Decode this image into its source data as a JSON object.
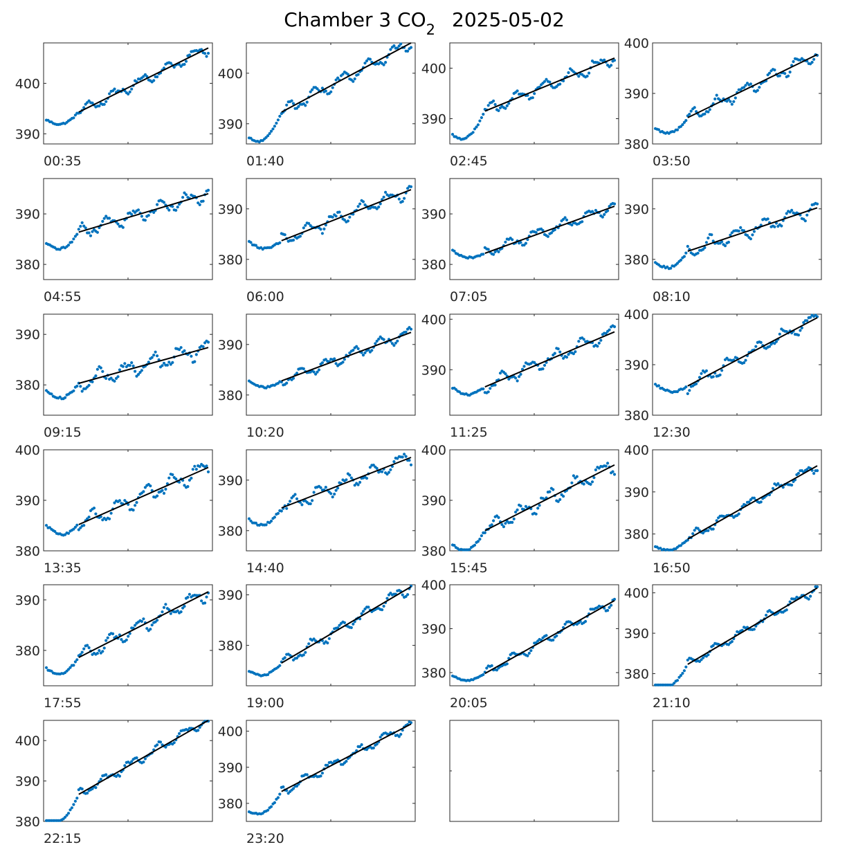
{
  "title": {
    "main": "Chamber 3 CO",
    "sub": "2",
    "date": "2025-05-02"
  },
  "colors": {
    "points": "#0072BD",
    "fit": "#000000",
    "axes": "#262626"
  },
  "chart_data": {
    "type": "scatter",
    "layout": "grid of 4 columns x 6 rows",
    "description_series": [
      "measured",
      "linear fit"
    ],
    "panels": [
      {
        "label": "00:35",
        "ylim": [
          388,
          408
        ],
        "yticks": [
          390,
          400
        ],
        "start": 392.8,
        "fit": [
          394.3,
          407.0
        ],
        "sawtooth": 1.0
      },
      {
        "label": "01:40",
        "ylim": [
          386,
          406
        ],
        "yticks": [
          390,
          400
        ],
        "start": 387.2,
        "fit": [
          392.3,
          406.0
        ],
        "sawtooth": 1.2
      },
      {
        "label": "02:45",
        "ylim": [
          385,
          405
        ],
        "yticks": [
          390,
          400
        ],
        "start": 386.8,
        "fit": [
          391.5,
          402.0
        ],
        "sawtooth": 1.2
      },
      {
        "label": "03:50",
        "ylim": [
          380,
          400
        ],
        "yticks": [
          380,
          390,
          400
        ],
        "start": 383.2,
        "fit": [
          385.2,
          397.7
        ],
        "sawtooth": 1.2
      },
      {
        "label": "04:55",
        "ylim": [
          377,
          397
        ],
        "yticks": [
          380,
          390
        ],
        "start": 384.2,
        "fit": [
          386.4,
          394.0
        ],
        "sawtooth": 1.3
      },
      {
        "label": "06:00",
        "ylim": [
          376,
          396
        ],
        "yticks": [
          380,
          390
        ],
        "start": 383.5,
        "fit": [
          383.7,
          393.8
        ],
        "sawtooth": 1.2
      },
      {
        "label": "07:05",
        "ylim": [
          377,
          397
        ],
        "yticks": [
          380,
          390
        ],
        "start": 382.7,
        "fit": [
          382.2,
          391.5
        ],
        "sawtooth": 1.0
      },
      {
        "label": "08:10",
        "ylim": [
          376,
          396
        ],
        "yticks": [
          380,
          390
        ],
        "start": 379.5,
        "fit": [
          381.6,
          390.2
        ],
        "sawtooth": 1.3
      },
      {
        "label": "09:15",
        "ylim": [
          374,
          394
        ],
        "yticks": [
          380,
          390
        ],
        "start": 378.9,
        "fit": [
          380.3,
          387.4
        ],
        "sawtooth": 1.5
      },
      {
        "label": "10:20",
        "ylim": [
          376,
          396
        ],
        "yticks": [
          380,
          390
        ],
        "start": 382.7,
        "fit": [
          382.8,
          392.4
        ],
        "sawtooth": 1.0
      },
      {
        "label": "11:25",
        "ylim": [
          381,
          401
        ],
        "yticks": [
          390,
          400
        ],
        "start": 386.5,
        "fit": [
          386.6,
          397.5
        ],
        "sawtooth": 1.2
      },
      {
        "label": "12:30",
        "ylim": [
          380,
          400
        ],
        "yticks": [
          380,
          390,
          400
        ],
        "start": 386.2,
        "fit": [
          385.8,
          399.3
        ],
        "sawtooth": 1.2
      },
      {
        "label": "13:35",
        "ylim": [
          380,
          400
        ],
        "yticks": [
          380,
          390,
          400
        ],
        "start": 385.0,
        "fit": [
          385.2,
          396.5
        ],
        "sawtooth": 1.5
      },
      {
        "label": "14:40",
        "ylim": [
          376,
          396
        ],
        "yticks": [
          380,
          390
        ],
        "start": 382.2,
        "fit": [
          384.5,
          394.5
        ],
        "sawtooth": 1.3
      },
      {
        "label": "15:45",
        "ylim": [
          380,
          400
        ],
        "yticks": [
          380,
          390,
          400
        ],
        "start": 381.3,
        "fit": [
          384.0,
          397.0
        ],
        "sawtooth": 1.4
      },
      {
        "label": "16:50",
        "ylim": [
          376,
          400
        ],
        "yticks": [
          380,
          390,
          400
        ],
        "start": 377.0,
        "fit": [
          378.8,
          396.2
        ],
        "sawtooth": 1.0
      },
      {
        "label": "17:55",
        "ylim": [
          373,
          393
        ],
        "yticks": [
          380,
          390
        ],
        "start": 376.5,
        "fit": [
          378.6,
          391.6
        ],
        "sawtooth": 1.3
      },
      {
        "label": "19:00",
        "ylim": [
          372,
          392
        ],
        "yticks": [
          380,
          390
        ],
        "start": 375.0,
        "fit": [
          376.5,
          391.6
        ],
        "sawtooth": 1.0
      },
      {
        "label": "20:05",
        "ylim": [
          377,
          400
        ],
        "yticks": [
          380,
          390,
          400
        ],
        "start": 379.3,
        "fit": [
          379.8,
          396.4
        ],
        "sawtooth": 1.0
      },
      {
        "label": "21:10",
        "ylim": [
          377,
          402
        ],
        "yticks": [
          380,
          390,
          400
        ],
        "start": 377.0,
        "fit": [
          382.3,
          401.2
        ],
        "sawtooth": 1.0
      },
      {
        "label": "22:15",
        "ylim": [
          380,
          405
        ],
        "yticks": [
          380,
          390,
          400
        ],
        "start": 380.0,
        "fit": [
          386.7,
          405.3
        ],
        "sawtooth": 1.0
      },
      {
        "label": "23:20",
        "ylim": [
          375,
          403
        ],
        "yticks": [
          380,
          390,
          400
        ],
        "start": 377.8,
        "fit": [
          383.3,
          402.0
        ],
        "sawtooth": 1.2
      },
      {
        "label": "",
        "empty": true
      },
      {
        "label": "",
        "empty": true
      }
    ]
  }
}
